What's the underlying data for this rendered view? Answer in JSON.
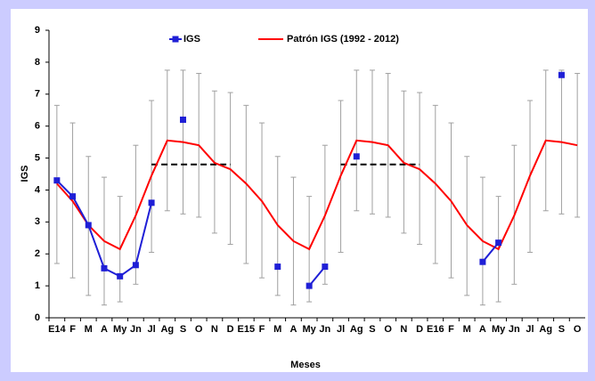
{
  "chart_data": {
    "type": "line",
    "x_label": "Meses",
    "y_label": "IGS",
    "categories": [
      "E14",
      "F",
      "M",
      "A",
      "My",
      "Jn",
      "Jl",
      "Ag",
      "S",
      "O",
      "N",
      "D",
      "E15",
      "F",
      "M",
      "A",
      "My",
      "Jn",
      "Jl",
      "Ag",
      "S",
      "O",
      "N",
      "D",
      "E16",
      "F",
      "M",
      "A",
      "My",
      "Jn",
      "Jl",
      "Ag",
      "S",
      "O"
    ],
    "ylim": [
      0,
      9
    ],
    "yticks": [
      0,
      1,
      2,
      3,
      4,
      5,
      6,
      7,
      8,
      9
    ],
    "series": [
      {
        "name": "IGS",
        "color": "#1f1fd6",
        "marker": "square",
        "values": [
          4.3,
          3.8,
          2.9,
          1.55,
          1.3,
          1.65,
          3.6,
          null,
          6.2,
          null,
          null,
          null,
          null,
          null,
          1.6,
          null,
          1.0,
          1.6,
          null,
          5.05,
          null,
          null,
          null,
          null,
          null,
          null,
          null,
          1.75,
          2.35,
          null,
          null,
          null,
          7.6,
          null
        ]
      },
      {
        "name": "Patrón IGS (1992 - 2012)",
        "color": "#ff0000",
        "error_color": "#a0a0a0",
        "values": [
          4.2,
          3.65,
          2.9,
          2.4,
          2.15,
          3.2,
          4.45,
          5.55,
          5.5,
          5.4,
          4.85,
          4.65,
          4.2,
          3.65,
          2.9,
          2.4,
          2.15,
          3.2,
          4.45,
          5.55,
          5.5,
          5.4,
          4.85,
          4.65,
          4.2,
          3.65,
          2.9,
          2.4,
          2.15,
          3.2,
          4.45,
          5.55,
          5.5,
          5.4
        ],
        "lower": [
          1.7,
          1.25,
          0.7,
          0.4,
          0.5,
          1.05,
          2.05,
          3.35,
          3.25,
          3.15,
          2.65,
          2.3,
          1.7,
          1.25,
          0.7,
          0.4,
          0.5,
          1.05,
          2.05,
          3.35,
          3.25,
          3.15,
          2.65,
          2.3,
          1.7,
          1.25,
          0.7,
          0.4,
          0.5,
          1.05,
          2.05,
          3.35,
          3.25,
          3.15
        ],
        "upper": [
          6.65,
          6.1,
          5.05,
          4.4,
          3.8,
          5.4,
          6.8,
          7.75,
          7.75,
          7.65,
          7.1,
          7.05,
          6.65,
          6.1,
          5.05,
          4.4,
          3.8,
          5.4,
          6.8,
          7.75,
          7.75,
          7.65,
          7.1,
          7.05,
          6.65,
          6.1,
          5.05,
          4.4,
          3.8,
          5.4,
          6.8,
          7.75,
          7.75,
          7.65
        ]
      }
    ],
    "dashed": {
      "color": "#000000",
      "values": [
        null,
        null,
        null,
        null,
        null,
        null,
        4.8,
        4.8,
        4.8,
        4.8,
        4.8,
        4.8,
        null,
        null,
        null,
        null,
        null,
        null,
        4.8,
        4.8,
        4.8,
        4.8,
        4.8,
        4.8,
        null,
        null,
        null,
        null,
        null,
        null,
        null,
        null,
        null,
        null
      ]
    }
  }
}
